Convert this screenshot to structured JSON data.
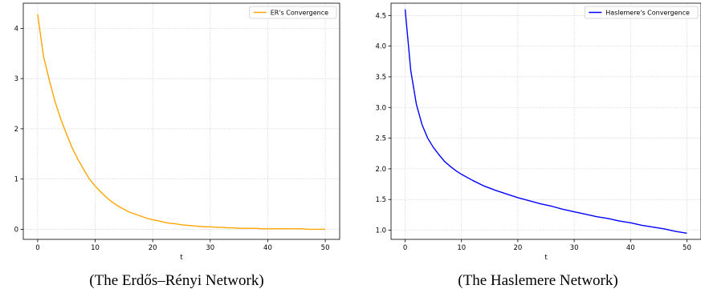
{
  "chart_data": [
    {
      "type": "line",
      "xlabel": "t",
      "ylabel": "",
      "xlim": [
        -2.5,
        52.5
      ],
      "ylim": [
        -0.2,
        4.5
      ],
      "xticks": [
        0,
        10,
        20,
        30,
        40,
        50
      ],
      "yticks": [
        0,
        1,
        2,
        3,
        4
      ],
      "grid": true,
      "legend_position": "top-right",
      "color": "#FFA500",
      "series": [
        {
          "name": "ER's Convergence",
          "x": [
            0,
            1,
            2,
            3,
            4,
            5,
            6,
            7,
            8,
            9,
            10,
            11,
            12,
            13,
            14,
            15,
            16,
            17,
            18,
            19,
            20,
            21,
            22,
            23,
            24,
            25,
            26,
            27,
            28,
            29,
            30,
            31,
            32,
            33,
            34,
            35,
            36,
            37,
            38,
            39,
            40,
            41,
            42,
            43,
            44,
            45,
            46,
            47,
            48,
            49,
            50
          ],
          "y": [
            4.28,
            3.45,
            2.98,
            2.55,
            2.2,
            1.9,
            1.62,
            1.39,
            1.19,
            1.0,
            0.86,
            0.74,
            0.63,
            0.54,
            0.46,
            0.4,
            0.34,
            0.3,
            0.26,
            0.22,
            0.19,
            0.17,
            0.14,
            0.12,
            0.11,
            0.09,
            0.08,
            0.07,
            0.06,
            0.05,
            0.05,
            0.04,
            0.04,
            0.03,
            0.03,
            0.02,
            0.02,
            0.02,
            0.02,
            0.01,
            0.01,
            0.01,
            0.01,
            0.01,
            0.01,
            0.01,
            0.01,
            0.0,
            0.0,
            0.0,
            0.0
          ]
        }
      ]
    },
    {
      "type": "line",
      "xlabel": "t",
      "ylabel": "",
      "xlim": [
        -2.5,
        52.5
      ],
      "ylim": [
        0.85,
        4.7
      ],
      "xticks": [
        0,
        10,
        20,
        30,
        40,
        50
      ],
      "yticks": [
        1.0,
        1.5,
        2.0,
        2.5,
        3.0,
        3.5,
        4.0,
        4.5
      ],
      "grid": true,
      "legend_position": "top-right",
      "color": "#0000FF",
      "series": [
        {
          "name": "Haslemere's Convergence",
          "x": [
            0,
            1,
            2,
            3,
            4,
            5,
            6,
            7,
            8,
            9,
            10,
            12,
            14,
            16,
            18,
            20,
            22,
            24,
            26,
            28,
            30,
            32,
            34,
            36,
            38,
            40,
            42,
            44,
            46,
            48,
            50
          ],
          "y": [
            4.6,
            3.6,
            3.05,
            2.72,
            2.5,
            2.35,
            2.23,
            2.12,
            2.04,
            1.97,
            1.91,
            1.81,
            1.72,
            1.65,
            1.59,
            1.53,
            1.48,
            1.43,
            1.39,
            1.34,
            1.3,
            1.26,
            1.22,
            1.19,
            1.15,
            1.12,
            1.08,
            1.05,
            1.02,
            0.98,
            0.95
          ]
        }
      ]
    }
  ],
  "captions": {
    "left": "(The Erdős–Rényi Network)",
    "right": "(The Haslemere Network)"
  }
}
